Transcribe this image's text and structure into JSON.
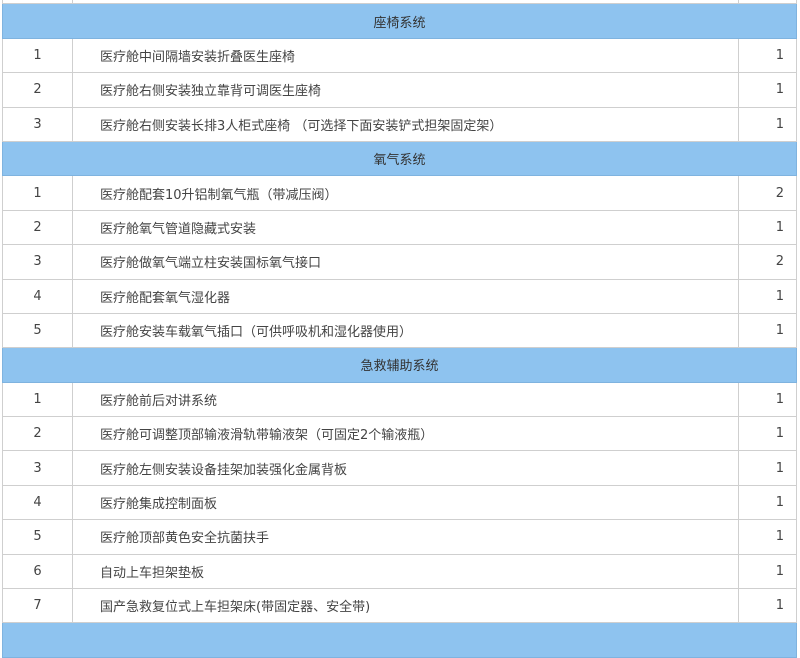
{
  "sections": [
    {
      "title": "座椅系统",
      "rows": [
        {
          "no": "1",
          "item": "医疗舱中间隔墙安装折叠医生座椅",
          "qty": "1"
        },
        {
          "no": "2",
          "item": "医疗舱右侧安装独立靠背可调医生座椅",
          "qty": "1"
        },
        {
          "no": "3",
          "item": "医疗舱右侧安装长排3人柜式座椅 （可选择下面安装铲式担架固定架）",
          "qty": "1"
        }
      ]
    },
    {
      "title": "氧气系统",
      "rows": [
        {
          "no": "1",
          "item": "医疗舱配套10升铝制氧气瓶（带减压阀）",
          "qty": "2"
        },
        {
          "no": "2",
          "item": "医疗舱氧气管道隐藏式安装",
          "qty": "1"
        },
        {
          "no": "3",
          "item": "医疗舱做氧气端立柱安装国标氧气接口",
          "qty": "2"
        },
        {
          "no": "4",
          "item": "医疗舱配套氧气湿化器",
          "qty": "1"
        },
        {
          "no": "5",
          "item": "医疗舱安装车载氧气插口（可供呼吸机和湿化器使用）",
          "qty": "1"
        }
      ]
    },
    {
      "title": "急救辅助系统",
      "rows": [
        {
          "no": "1",
          "item": "医疗舱前后对讲系统",
          "qty": "1"
        },
        {
          "no": "2",
          "item": "医疗舱可调整顶部输液滑轨带输液架（可固定2个输液瓶）",
          "qty": "1"
        },
        {
          "no": "3",
          "item": "医疗舱左侧安装设备挂架加装强化金属背板",
          "qty": "1"
        },
        {
          "no": "4",
          "item": "医疗舱集成控制面板",
          "qty": "1"
        },
        {
          "no": "5",
          "item": "医疗舱顶部黄色安全抗菌扶手",
          "qty": "1"
        },
        {
          "no": "6",
          "item": "自动上车担架垫板",
          "qty": "1"
        },
        {
          "no": "7",
          "item": "国产急救复位式上车担架床(带固定器、安全带)",
          "qty": "1"
        }
      ]
    }
  ],
  "colors": {
    "section_header_bg": "#8ec3ef",
    "border": "#cfcfcf"
  }
}
